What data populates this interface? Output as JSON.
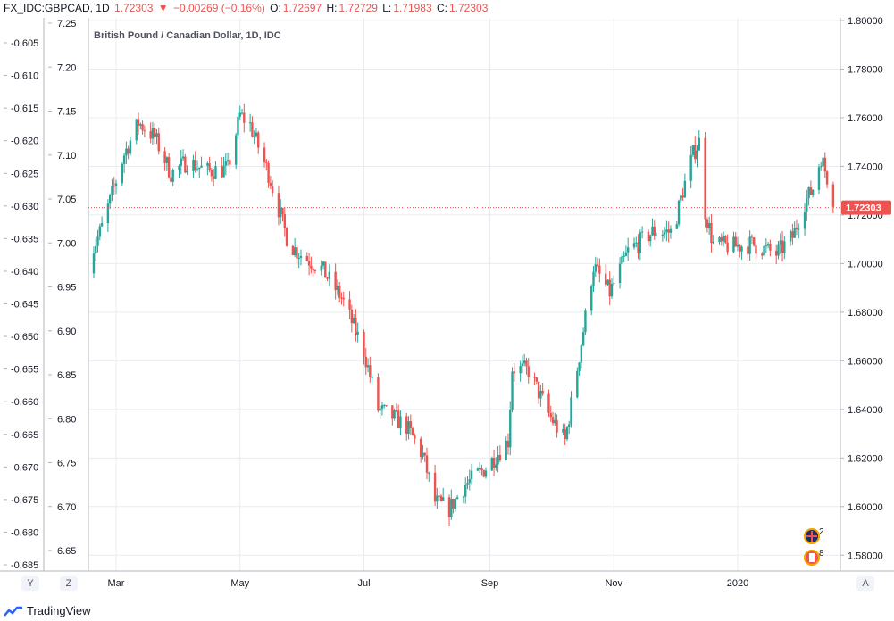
{
  "header": {
    "symbol": "FX_IDC:GBPCAD, 1D",
    "last": "1.72303",
    "arrow": "▼",
    "change": "−0.00269 (−0.16%)",
    "o_label": "O:",
    "o_value": "1.72697",
    "h_label": "H:",
    "h_value": "1.72729",
    "l_label": "L:",
    "l_value": "1.71983",
    "c_label": "C:",
    "c_value": "1.72303"
  },
  "legend_title": "British Pound / Canadian Dollar, 1D, IDC",
  "buttons": {
    "y": "Y",
    "z": "Z",
    "a": "A"
  },
  "brand": "TradingView",
  "badges": {
    "gb": "2",
    "ca": "8"
  },
  "colors": {
    "up": "#26a69a",
    "down": "#ef5350",
    "grid": "#e8ecf0",
    "price_line": "#ef5350"
  },
  "chart_data": {
    "type": "candlestick",
    "title": "British Pound / Canadian Dollar, 1D, IDC",
    "last_price": 1.72303,
    "right_axis": {
      "ylim": [
        1.5735,
        1.8011
      ],
      "ticks": [
        "1.58000",
        "1.60000",
        "1.62000",
        "1.64000",
        "1.66000",
        "1.68000",
        "1.70000",
        "1.72000",
        "1.74000",
        "1.76000",
        "1.78000",
        "1.80000"
      ]
    },
    "left_axis_1": {
      "ticks": [
        "-0.605",
        "-0.610",
        "-0.615",
        "-0.620",
        "-0.625",
        "-0.630",
        "-0.635",
        "-0.640",
        "-0.645",
        "-0.650",
        "-0.655",
        "-0.660",
        "-0.665",
        "-0.670",
        "-0.675",
        "-0.680",
        "-0.685"
      ]
    },
    "left_axis_2": {
      "ticks": [
        "7.25",
        "7.20",
        "7.15",
        "7.10",
        "7.05",
        "7.00",
        "6.95",
        "6.90",
        "6.85",
        "6.80",
        "6.75",
        "6.70",
        "6.65"
      ]
    },
    "x_ticks": [
      "Mar",
      "May",
      "Jul",
      "Sep",
      "Nov",
      "2020"
    ],
    "grid": true,
    "keypoints": [
      [
        "2019-02-15",
        1.7
      ],
      [
        "2019-02-22",
        1.715
      ],
      [
        "2019-03-05",
        1.745
      ],
      [
        "2019-03-12",
        1.758
      ],
      [
        "2019-03-20",
        1.752
      ],
      [
        "2019-03-28",
        1.737
      ],
      [
        "2019-04-05",
        1.742
      ],
      [
        "2019-04-15",
        1.738
      ],
      [
        "2019-04-25",
        1.739
      ],
      [
        "2019-05-01",
        1.761
      ],
      [
        "2019-05-06",
        1.757
      ],
      [
        "2019-05-15",
        1.737
      ],
      [
        "2019-05-25",
        1.708
      ],
      [
        "2019-06-01",
        1.703
      ],
      [
        "2019-06-10",
        1.698
      ],
      [
        "2019-06-20",
        1.686
      ],
      [
        "2019-07-01",
        1.664
      ],
      [
        "2019-07-08",
        1.64
      ],
      [
        "2019-07-15",
        1.637
      ],
      [
        "2019-07-22",
        1.633
      ],
      [
        "2019-07-30",
        1.621
      ],
      [
        "2019-08-05",
        1.602
      ],
      [
        "2019-08-12",
        1.599
      ],
      [
        "2019-08-20",
        1.609
      ],
      [
        "2019-08-30",
        1.616
      ],
      [
        "2019-09-10",
        1.627
      ],
      [
        "2019-09-12",
        1.657
      ],
      [
        "2019-09-20",
        1.656
      ],
      [
        "2019-09-30",
        1.638
      ],
      [
        "2019-10-08",
        1.627
      ],
      [
        "2019-10-15",
        1.662
      ],
      [
        "2019-10-22",
        1.699
      ],
      [
        "2019-10-30",
        1.688
      ],
      [
        "2019-11-08",
        1.705
      ],
      [
        "2019-11-20",
        1.713
      ],
      [
        "2019-11-30",
        1.713
      ],
      [
        "2019-12-05",
        1.73
      ],
      [
        "2019-12-10",
        1.745
      ],
      [
        "2019-12-13",
        1.75
      ],
      [
        "2019-12-16",
        1.721
      ],
      [
        "2019-12-20",
        1.708
      ],
      [
        "2019-12-30",
        1.707
      ],
      [
        "2020-01-08",
        1.708
      ],
      [
        "2020-01-20",
        1.704
      ],
      [
        "2020-01-28",
        1.711
      ],
      [
        "2020-02-03",
        1.725
      ],
      [
        "2020-02-07",
        1.731
      ],
      [
        "2020-02-11",
        1.744
      ],
      [
        "2020-02-17",
        1.727
      ],
      [
        "2020-02-21",
        1.723
      ]
    ]
  }
}
